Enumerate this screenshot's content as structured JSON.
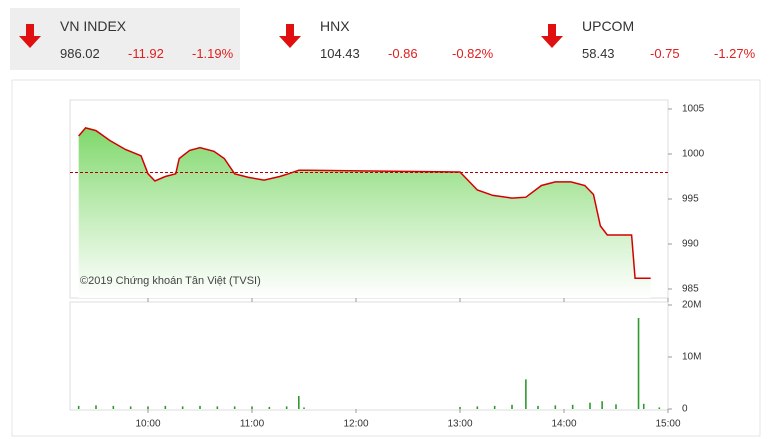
{
  "indices": [
    {
      "name": "VN INDEX",
      "value": "986.02",
      "change": "-11.92",
      "percent": "-1.19%"
    },
    {
      "name": "HNX",
      "value": "104.43",
      "change": "-0.86",
      "percent": "-0.82%"
    },
    {
      "name": "UPCOM",
      "value": "58.43",
      "change": "-0.75",
      "percent": "-1.27%"
    }
  ],
  "chart_data": [
    {
      "type": "line",
      "annotation": "©2019 Chứng khoán Tân Việt (TVSI)",
      "x": [
        "09:20",
        "09:24",
        "09:30",
        "09:38",
        "09:47",
        "09:56",
        "10:00",
        "10:04",
        "10:10",
        "10:16",
        "10:18",
        "10:24",
        "10:30",
        "10:38",
        "10:44",
        "10:50",
        "10:58",
        "11:07",
        "11:16",
        "11:21",
        "11:27",
        "11:32",
        "13:00",
        "13:03",
        "13:10",
        "13:19",
        "13:30",
        "13:38",
        "13:47",
        "13:55",
        "14:04",
        "14:12",
        "14:17",
        "14:21",
        "14:25",
        "14:39",
        "14:41",
        "14:50"
      ],
      "values": [
        1002.0,
        1002.9,
        1002.6,
        1001.5,
        1000.5,
        999.8,
        997.8,
        997.0,
        997.5,
        997.8,
        999.5,
        1000.4,
        1000.7,
        1000.3,
        999.5,
        997.8,
        997.4,
        997.1,
        997.5,
        997.8,
        998.2,
        998.2,
        998.0,
        997.4,
        996.0,
        995.4,
        995.1,
        995.2,
        996.5,
        996.9,
        996.9,
        996.5,
        995.5,
        992.0,
        991.0,
        991.0,
        986.2,
        986.2
      ],
      "color": "#d40000",
      "area_color": "#7fd86b",
      "reference": 997.94,
      "reference_color": "#b00000",
      "xlim": [
        "09:15",
        "15:00"
      ],
      "ylim": [
        984,
        1006
      ],
      "yticks": [
        985,
        990,
        995,
        1000,
        1005
      ]
    },
    {
      "type": "bar",
      "x": [
        "09:20",
        "09:30",
        "09:40",
        "09:50",
        "10:00",
        "10:10",
        "10:20",
        "10:30",
        "10:40",
        "10:50",
        "11:00",
        "11:10",
        "11:20",
        "11:27",
        "11:30",
        "13:00",
        "13:10",
        "13:20",
        "13:30",
        "13:38",
        "13:45",
        "13:55",
        "14:05",
        "14:15",
        "14:22",
        "14:30",
        "14:43",
        "14:46",
        "14:55"
      ],
      "values": [
        600000,
        700000,
        600000,
        500000,
        500000,
        600000,
        500000,
        600000,
        500000,
        500000,
        500000,
        400000,
        500000,
        2500000,
        300000,
        400000,
        500000,
        600000,
        800000,
        5700000,
        600000,
        700000,
        800000,
        1200000,
        1500000,
        900000,
        17500000,
        1000000,
        300000
      ],
      "color": "#2e9a2e",
      "xlim": [
        "09:15",
        "15:00"
      ],
      "ylim": [
        0,
        20000000
      ],
      "yticks": [
        0,
        {
          "value": 10000000,
          "label": "10M"
        },
        {
          "value": 20000000,
          "label": "20M"
        }
      ],
      "xticks": [
        "10:00",
        "11:00",
        "12:00",
        "13:00",
        "14:00",
        "15:00"
      ]
    }
  ]
}
